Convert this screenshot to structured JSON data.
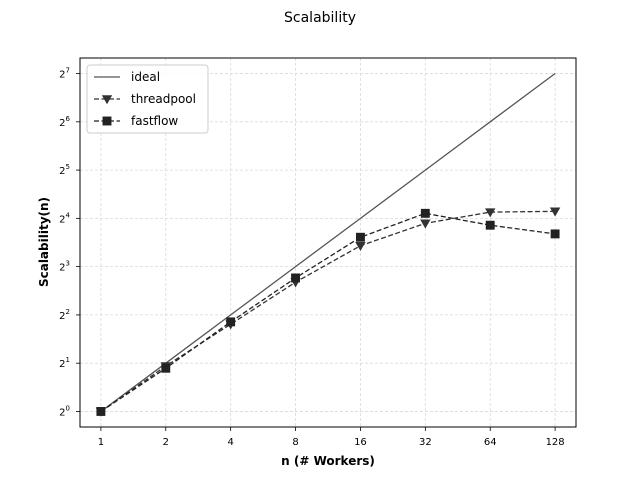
{
  "chart_data": {
    "type": "line",
    "title": "Scalability",
    "xlabel": "n (# Workers)",
    "ylabel": "Scalability(n)",
    "x_scale": "log2",
    "y_scale": "log2",
    "x_ticks": [
      1,
      2,
      4,
      8,
      16,
      32,
      64,
      128
    ],
    "x_tick_labels": [
      "1",
      "2",
      "4",
      "8",
      "16",
      "32",
      "64",
      "128"
    ],
    "y_ticks": [
      1,
      2,
      4,
      8,
      16,
      32,
      64,
      128
    ],
    "y_tick_labels": [
      {
        "base": "2",
        "exp": "0"
      },
      {
        "base": "2",
        "exp": "1"
      },
      {
        "base": "2",
        "exp": "2"
      },
      {
        "base": "2",
        "exp": "3"
      },
      {
        "base": "2",
        "exp": "4"
      },
      {
        "base": "2",
        "exp": "5"
      },
      {
        "base": "2",
        "exp": "6"
      },
      {
        "base": "2",
        "exp": "7"
      }
    ],
    "xlim": [
      0.8,
      160
    ],
    "ylim": [
      0.8,
      160
    ],
    "grid": true,
    "legend_position": "top-left",
    "series": [
      {
        "name": "ideal",
        "style": "solid",
        "marker": "none",
        "color": "#555555",
        "x": [
          1,
          2,
          4,
          8,
          16,
          32,
          64,
          128
        ],
        "y": [
          1,
          2,
          4,
          8,
          16,
          32,
          64,
          128
        ]
      },
      {
        "name": "threadpool",
        "style": "dashed",
        "marker": "triangle-down",
        "color": "#333333",
        "x": [
          1,
          2,
          4,
          8,
          16,
          32,
          64,
          128
        ],
        "y": [
          1,
          1.92,
          3.5,
          6.4,
          10.8,
          14.9,
          17.5,
          17.7
        ]
      },
      {
        "name": "fastflow",
        "style": "dashed",
        "marker": "square",
        "color": "#222222",
        "x": [
          1,
          2,
          4,
          8,
          16,
          32,
          64,
          128
        ],
        "y": [
          1,
          1.86,
          3.62,
          6.8,
          12.2,
          17.2,
          14.5,
          12.8
        ]
      }
    ]
  }
}
